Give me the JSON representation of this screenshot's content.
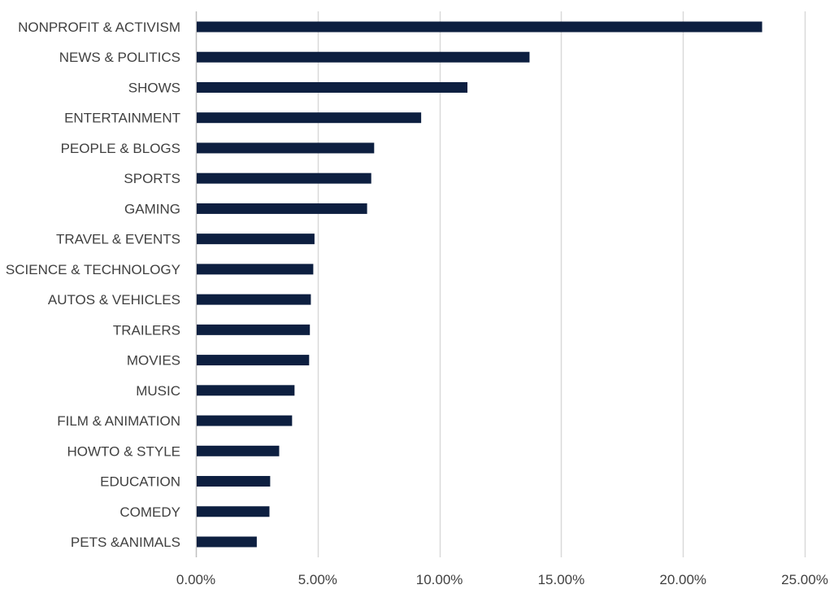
{
  "chart_data": {
    "type": "bar",
    "orientation": "horizontal",
    "title": "",
    "xlabel": "",
    "ylabel": "",
    "xlim": [
      0,
      25
    ],
    "x_ticks": [
      0,
      5,
      10,
      15,
      20,
      25
    ],
    "x_tick_labels": [
      "0.00%",
      "5.00%",
      "10.00%",
      "15.00%",
      "20.00%",
      "25.00%"
    ],
    "grid": "vertical",
    "legend": "none",
    "categories": [
      "NONPROFIT & ACTIVISM",
      "NEWS & POLITICS",
      "SHOWS",
      "ENTERTAINMENT",
      "PEOPLE & BLOGS",
      "SPORTS",
      "GAMING",
      "TRAVEL & EVENTS",
      "SCIENCE & TECHNOLOGY",
      "AUTOS & VEHICLES",
      "TRAILERS",
      "MOVIES",
      "MUSIC",
      "FILM & ANIMATION",
      "HOWTO & STYLE",
      "EDUCATION",
      "COMEDY",
      "PETS &ANIMALS"
    ],
    "values": [
      23.25,
      13.7,
      11.15,
      9.25,
      7.32,
      7.2,
      7.03,
      4.87,
      4.82,
      4.72,
      4.68,
      4.65,
      4.05,
      3.95,
      3.42,
      3.05,
      3.02,
      2.5
    ],
    "colors": {
      "bar": "#0d1f40",
      "grid": "#d9d9d9",
      "axis": "#bfbfbf",
      "text": "#404040"
    }
  }
}
